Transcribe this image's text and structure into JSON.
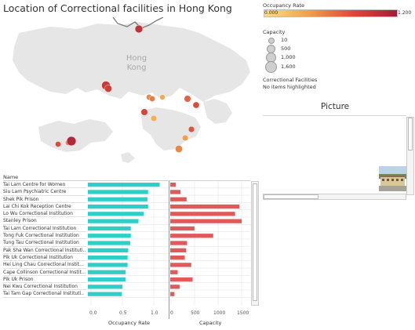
{
  "title": "Location of Correctional facilities in Hong Kong",
  "map": {
    "label_line1": "Hong",
    "label_line2": "Kong",
    "sea_color": "#ffffff",
    "land_color": "#e6e6e6",
    "border_color": "#7a7a7a",
    "facilities": [
      {
        "occ": 1.0,
        "cap": 500
      },
      {
        "occ": 0.95,
        "cap": 700
      },
      {
        "occ": 0.9,
        "cap": 400
      },
      {
        "occ": 0.55,
        "cap": 150
      },
      {
        "occ": 0.6,
        "cap": 150
      },
      {
        "occ": 0.4,
        "cap": 100
      },
      {
        "occ": 0.7,
        "cap": 300
      },
      {
        "occ": 0.8,
        "cap": 250
      },
      {
        "occ": 0.85,
        "cap": 300
      },
      {
        "occ": 0.35,
        "cap": 200
      },
      {
        "occ": 0.75,
        "cap": 200
      },
      {
        "occ": 0.45,
        "cap": 180
      },
      {
        "occ": 0.55,
        "cap": 400
      },
      {
        "occ": 0.6,
        "cap": 150
      },
      {
        "occ": 0.8,
        "cap": 150
      },
      {
        "occ": 1.1,
        "cap": 900
      }
    ]
  },
  "legend": {
    "occupancy_title": "Occupancy Rate",
    "occ_min": "0.000",
    "occ_max": "1.200",
    "capacity_title": "Capacity",
    "capacity_items": [
      "10",
      "500",
      "1,000",
      "1,600"
    ],
    "facilities_title": "Correctional Facilities",
    "facilities_sub": "No items highlighted"
  },
  "picture": {
    "title": "Picture"
  },
  "table": {
    "name_header": "Name",
    "occ_axis_title": "Occupancy Rate",
    "cap_axis_title": "Capacity",
    "occ_ticks": [
      "0.0",
      "0.5",
      "1.0"
    ],
    "cap_ticks": [
      "0",
      "500",
      "1000",
      "1500"
    ]
  },
  "chart_data": {
    "type": "bar",
    "categories": [
      "Tai Lam Centre for Women",
      "Siu Lam Psychiatric Centre",
      "Shek Pik Prison",
      "Lai Chi Kok Reception Centre",
      "Lo Wu Correctional Institution",
      "Stanley Prison",
      "Tai Lam Correctional Institution",
      "Tong Fuk Correctional Institution",
      "Tung Tau Correctional Institution",
      "Pak Sha Wan Correctional Instituti..",
      "Pik Uk Correctional Institution",
      "Hei Ling Chau Correctional Instituti..",
      "Cape Collinson Correctional Institut..",
      "Pik Uk Prison",
      "Nei Kwu Correctional Institution",
      "Tai Tam Gap Correctional Instituti.."
    ],
    "series": [
      {
        "name": "Occupancy Rate",
        "color": "#2fcfc8",
        "values": [
          1.12,
          0.94,
          0.93,
          0.94,
          0.87,
          0.79,
          0.67,
          0.67,
          0.66,
          0.63,
          0.62,
          0.62,
          0.59,
          0.59,
          0.54,
          0.53
        ]
      },
      {
        "name": "Capacity",
        "color": "#e05a5a",
        "values": [
          120,
          220,
          350,
          1480,
          1390,
          1530,
          520,
          920,
          360,
          340,
          310,
          450,
          160,
          480,
          200,
          90
        ]
      }
    ],
    "occ_xlim": [
      0,
      1.2
    ],
    "cap_xlim": [
      0,
      1600
    ]
  }
}
